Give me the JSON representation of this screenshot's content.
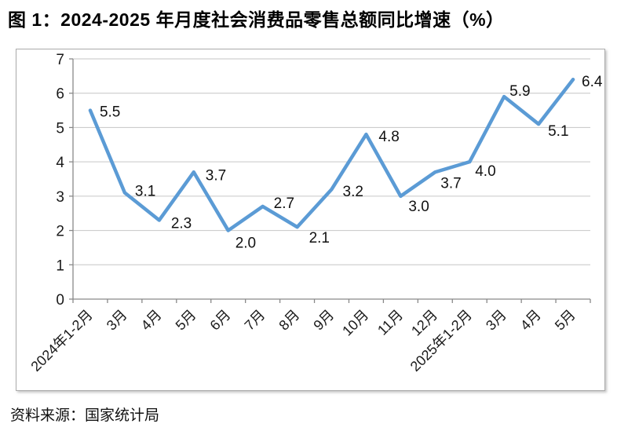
{
  "title": "图 1：2024-2025 年月度社会消费品零售总额同比增速（%）",
  "source": "资料来源：国家统计局",
  "chart_data": {
    "type": "line",
    "title": "2024-2025 年月度社会消费品零售总额同比增速（%）",
    "categories": [
      "2024年1-2月",
      "3月",
      "4月",
      "5月",
      "6月",
      "7月",
      "8月",
      "9月",
      "10月",
      "11月",
      "12月",
      "2025年1-2月",
      "3月",
      "4月",
      "5月"
    ],
    "values": [
      5.5,
      3.1,
      2.3,
      3.7,
      2.0,
      2.7,
      2.1,
      3.2,
      4.8,
      3.0,
      3.7,
      4.0,
      5.9,
      5.1,
      6.4
    ],
    "xlabel": "",
    "ylabel": "",
    "ylim": [
      0,
      7
    ],
    "ytick_step": 1,
    "grid": true,
    "legend": false,
    "data_labels": true,
    "colors": {
      "line": "#5B9BD5",
      "grid": "#c6c6c6",
      "axis": "#898989",
      "text": "#1a1a1a"
    }
  }
}
